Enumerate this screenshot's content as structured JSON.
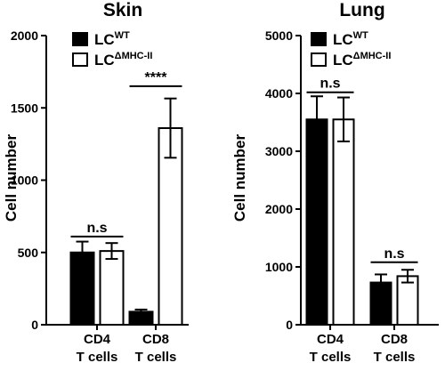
{
  "chart_data": [
    {
      "type": "bar",
      "title": "Skin",
      "ylabel": "Cell number",
      "xlabel": "",
      "ylim": [
        0,
        2000
      ],
      "yticks": [
        "0",
        "500",
        "1000",
        "1500",
        "2000"
      ],
      "categories": [
        {
          "line1": "CD4",
          "line2": "T cells"
        },
        {
          "line1": "CD8",
          "line2": "T cells"
        }
      ],
      "series": [
        {
          "legend_base": "LC",
          "legend_sup": "WT",
          "fill": "#000000",
          "values": [
            500,
            90
          ],
          "errors": [
            75,
            15
          ]
        },
        {
          "legend_base": "LC",
          "legend_sup": "ΔMHC-II",
          "fill": "#ffffff",
          "values": [
            510,
            1360
          ],
          "errors": [
            55,
            205
          ]
        }
      ],
      "significance": [
        {
          "category_index": 0,
          "label": "n.s",
          "y": 610
        },
        {
          "category_index": 1,
          "label": "****",
          "y": 1650
        }
      ],
      "legend_position": "top-left"
    },
    {
      "type": "bar",
      "title": "Lung",
      "ylabel": "Cell number",
      "xlabel": "",
      "ylim": [
        0,
        5000
      ],
      "yticks": [
        "0",
        "1000",
        "2000",
        "3000",
        "4000",
        "5000"
      ],
      "categories": [
        {
          "line1": "CD4",
          "line2": "T cells"
        },
        {
          "line1": "CD8",
          "line2": "T cells"
        }
      ],
      "series": [
        {
          "legend_base": "LC",
          "legend_sup": "WT",
          "fill": "#000000",
          "values": [
            3550,
            730
          ],
          "errors": [
            400,
            140
          ]
        },
        {
          "legend_base": "LC",
          "legend_sup": "ΔMHC-II",
          "fill": "#ffffff",
          "values": [
            3550,
            840
          ],
          "errors": [
            380,
            110
          ]
        }
      ],
      "significance": [
        {
          "category_index": 0,
          "label": "n.s",
          "y": 4020
        },
        {
          "category_index": 1,
          "label": "n.s",
          "y": 1080
        }
      ],
      "legend_position": "top-right"
    }
  ]
}
